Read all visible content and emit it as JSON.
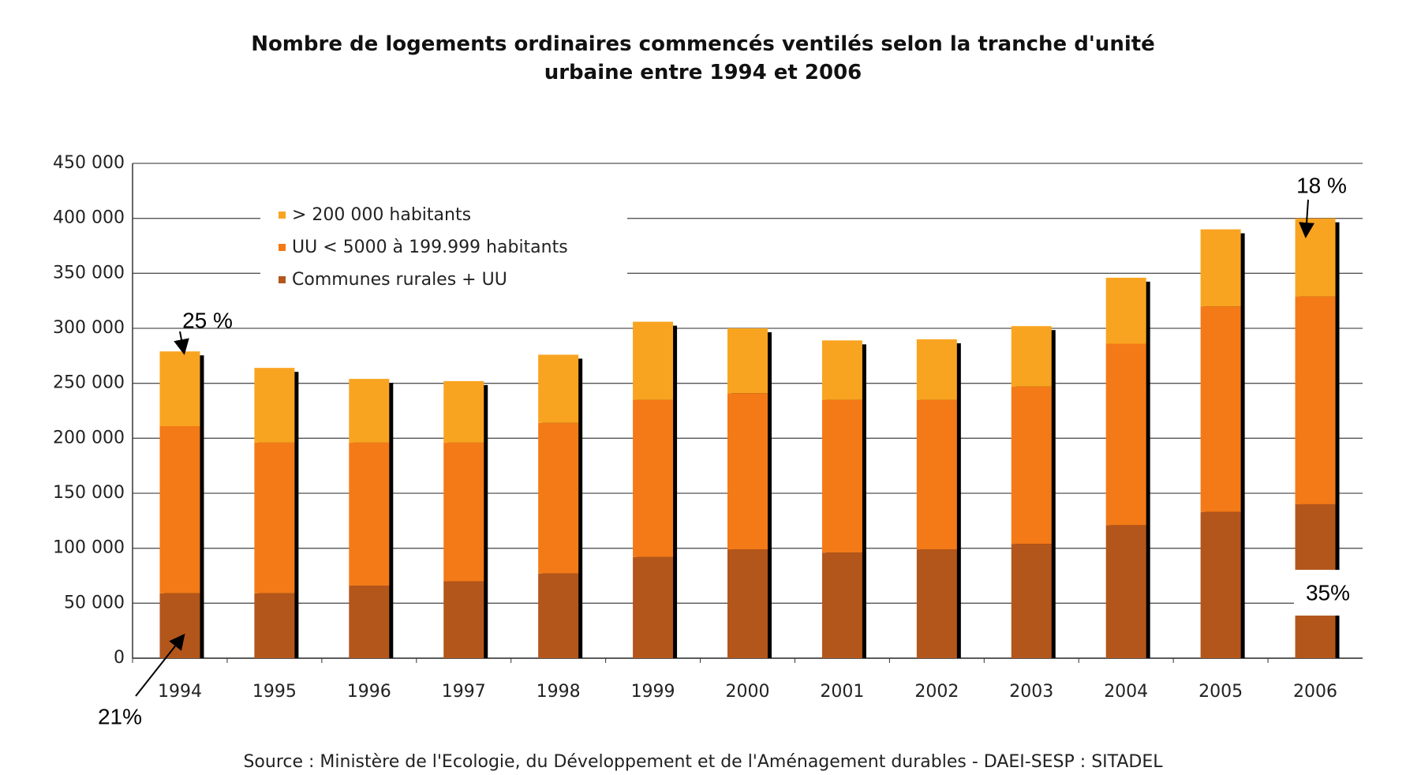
{
  "chart_data": {
    "type": "stacked_bar",
    "title": "Nombre de logements ordinaires commencés ventilés selon la tranche d'unité urbaine entre 1994 et 2006",
    "source": "Source : Ministère de l'Ecologie, du Développement et de l'Aménagement durables - DAEI-SESP : SITADEL",
    "categories": [
      "1994",
      "1995",
      "1996",
      "1997",
      "1998",
      "1999",
      "2000",
      "2001",
      "2002",
      "2003",
      "2004",
      "2005",
      "2006"
    ],
    "series": [
      {
        "name": "Communes rurales + UU",
        "color": "#b3561c",
        "values": [
          59000,
          59000,
          66000,
          70000,
          77000,
          92000,
          99000,
          96000,
          99000,
          104000,
          121000,
          133000,
          140000
        ]
      },
      {
        "name": "UU < 5000 à 199.999 habitants",
        "color": "#f47a17",
        "values": [
          152000,
          137000,
          130000,
          126000,
          137000,
          143000,
          142000,
          139000,
          136000,
          143000,
          165000,
          187000,
          189000
        ]
      },
      {
        "name": "> 200 000 habitants",
        "color": "#f9a420",
        "values": [
          68000,
          68000,
          58000,
          56000,
          62000,
          71000,
          59000,
          54000,
          55000,
          55000,
          60000,
          70000,
          71000
        ]
      }
    ],
    "ylim": [
      0,
      450000
    ],
    "yticks": [
      0,
      {
        "value": 50000,
        "label": "50 000"
      },
      {
        "value": 100000,
        "label": "100 000"
      },
      {
        "value": 150000,
        "label": "150 000"
      },
      {
        "value": 200000,
        "label": "200 000"
      },
      {
        "value": 250000,
        "label": "250 000"
      },
      {
        "value": 300000,
        "label": "300 000"
      },
      {
        "value": 350000,
        "label": "350 000"
      },
      {
        "value": 400000,
        "label": "400 000"
      },
      {
        "value": 450000,
        "label": "450 000"
      }
    ],
    "grid": true,
    "legend": "upper left",
    "annotations": [
      "25 %",
      "18 %",
      "21%",
      "35%"
    ]
  }
}
